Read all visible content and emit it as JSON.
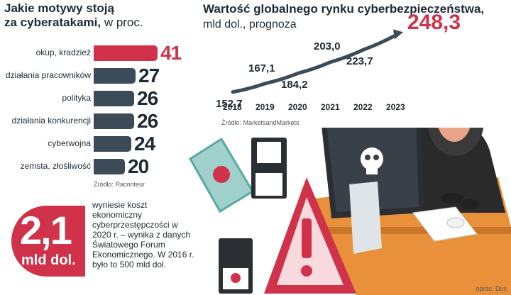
{
  "left_chart": {
    "title_bold": "Jakie motywy stoją",
    "title_bold2": "za cyberatakami,",
    "title_rest": " w proc.",
    "source": "Źródło: Raconteur"
  },
  "right_chart": {
    "title": "Wartość globalnego rynku cyberbezpieczeństwa,",
    "subtitle": "mld dol., prognoza",
    "source": "Źródło: MarketsandMarkets"
  },
  "callout": {
    "value": "2,1",
    "unit": "mld dol.",
    "text": "wyniesie koszt ekonomiczny cyberprzestępczości w 2020 r. – wynika z danych Światowego Forum Ekonomicznego. W 2016 r. było to 500 mld dol."
  },
  "credit": "oprac. Dus",
  "colors": {
    "highlight": "#d0324a",
    "bar": "#3b4b57",
    "line": "#3b4b57",
    "text": "#1f2a33"
  },
  "chart_data": [
    {
      "type": "bar",
      "categories": [
        "okup, kradzież",
        "działania pracowników",
        "polityka",
        "działania konkurencji",
        "cyberwojna",
        "zemsta, złośliwość"
      ],
      "values": [
        41,
        27,
        26,
        26,
        24,
        20
      ],
      "value_labels": [
        "41",
        "27",
        "26",
        "26",
        "24",
        "20"
      ],
      "title": "Jakie motywy stoją za cyberatakami, w proc."
    },
    {
      "type": "line",
      "x": [
        "2018",
        "2019",
        "2020",
        "2021",
        "2022",
        "2023"
      ],
      "values": [
        152.7,
        167.1,
        184.2,
        203.0,
        223.7,
        248.3
      ],
      "value_labels": [
        "152,7",
        "167,1",
        "184,2",
        "203,0",
        "223,7",
        "248,3"
      ],
      "title": "Wartość globalnego rynku cyberbezpieczeństwa, mld dol., prognoza"
    }
  ]
}
